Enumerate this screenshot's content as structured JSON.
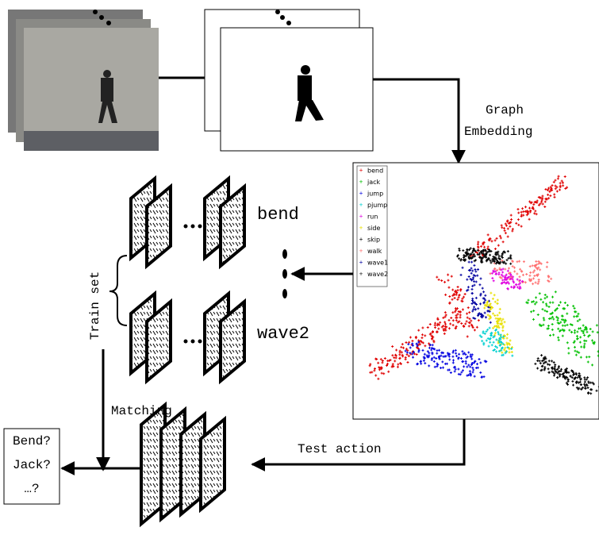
{
  "graph_embedding": [
    "Graph",
    "Embedding"
  ],
  "classes": {
    "top": "bend",
    "bottom": "wave2"
  },
  "train_set": "Train set",
  "matching": "Matching",
  "test_action": "Test action",
  "output": [
    "Bend?",
    "Jack?",
    "…?"
  ],
  "legend": [
    {
      "name": "bend",
      "color": "#e00000"
    },
    {
      "name": "jack",
      "color": "#00c000"
    },
    {
      "name": "jump",
      "color": "#0000e0"
    },
    {
      "name": "pjump",
      "color": "#00d0d0"
    },
    {
      "name": "run",
      "color": "#e000e0"
    },
    {
      "name": "side",
      "color": "#e8e000"
    },
    {
      "name": "skip",
      "color": "#000000"
    },
    {
      "name": "walk",
      "color": "#ff7070"
    },
    {
      "name": "wave1",
      "color": "#0000a0"
    },
    {
      "name": "wave2",
      "color": "#202020"
    }
  ]
}
